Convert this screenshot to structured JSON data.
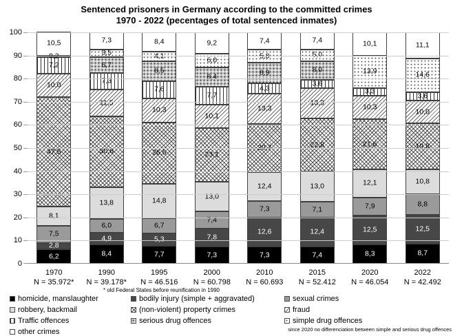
{
  "title": {
    "line1": "Sentenced prisoners in Germany according to the committed crimes",
    "line2": "1970 - 2022 (pecentages of total sentenced inmates)"
  },
  "footnote": "* old Federal States before reunification in 1990",
  "drug_note": "since 2020 no differenciation between simple and serious drug offences",
  "chart_data": {
    "type": "bar",
    "stacked": true,
    "title": "Sentenced prisoners in Germany according to the committed crimes 1970 - 2022 (pecentages of total sentenced inmates)",
    "xlabel": "",
    "ylabel": "",
    "ylim": [
      0,
      100
    ],
    "ytick_step": 10,
    "grid": true,
    "decimal_separator": ",",
    "legend_position": "bottom",
    "categories": [
      "1970",
      "1990",
      "1995",
      "2000",
      "2010",
      "2015",
      "2020",
      "2022"
    ],
    "n_labels": [
      "N = 35.972*",
      "N = 39.178*",
      "N = 46.516",
      "N = 60.798",
      "N = 60.693",
      "N = 52.412",
      "N = 46.054",
      "N = 42.492"
    ],
    "series": [
      {
        "name": "homicide, manslaughter",
        "pattern": "solid-black",
        "values": [
          6.2,
          8.4,
          7.7,
          7.3,
          7.3,
          7.4,
          8.3,
          8.7
        ]
      },
      {
        "name": "bodily injury (simple + aggravated)",
        "pattern": "solid-darkgray",
        "values": [
          2.8,
          4.9,
          5.3,
          7.8,
          12.6,
          12.4,
          12.5,
          12.5
        ]
      },
      {
        "name": "sexual crimes",
        "pattern": "solid-gray",
        "values": [
          7.5,
          6.0,
          6.7,
          7.4,
          7.3,
          7.1,
          7.9,
          8.8
        ]
      },
      {
        "name": "robbery, backmail",
        "pattern": "solid-lightgray",
        "values": [
          8.1,
          13.8,
          14.8,
          13.0,
          12.4,
          13.0,
          12.1,
          10.8
        ]
      },
      {
        "name": "(non-violent) property crimes",
        "pattern": "crosshatch",
        "values": [
          47.5,
          30.6,
          26.6,
          23.1,
          20.7,
          22.8,
          21.6,
          19.8
        ]
      },
      {
        "name": "fraud",
        "pattern": "diagonal",
        "values": [
          10.0,
          11.5,
          10.3,
          10.1,
          13.3,
          13.3,
          10.3,
          10.0
        ]
      },
      {
        "name": "Traffic offences",
        "pattern": "vertical",
        "values": [
          7.2,
          7.3,
          7.6,
          7.7,
          4.3,
          3.6,
          3.3,
          3.6
        ]
      },
      {
        "name": "serious drug offences",
        "pattern": "gray-dots",
        "values": [
          0,
          6.7,
          8.5,
          8.4,
          8.9,
          8.0,
          0,
          0
        ]
      },
      {
        "name": "simple drug offences",
        "pattern": "light-dots",
        "values": [
          0.2,
          3.5,
          4.1,
          6.0,
          5.8,
          5.0,
          13.9,
          14.6
        ]
      },
      {
        "name": "other crimes",
        "pattern": "white",
        "values": [
          10.5,
          7.3,
          8.4,
          9.2,
          7.4,
          7.4,
          10.1,
          11.1
        ]
      }
    ]
  }
}
